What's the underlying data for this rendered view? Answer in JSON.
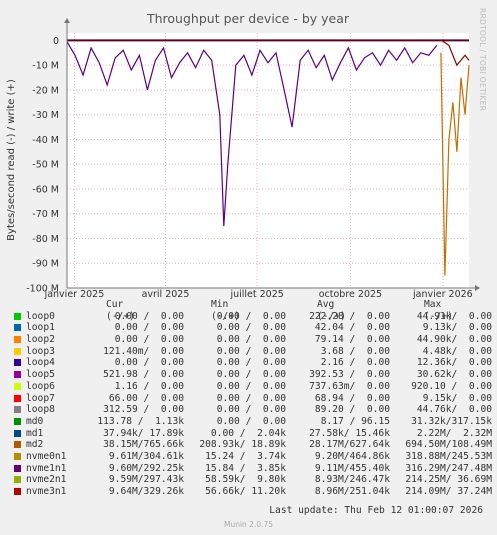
{
  "chart_data": {
    "type": "line",
    "title": "Throughput per device - by year",
    "ylabel": "Bytes/second read (-) / write (+)",
    "ylim": [
      -100000000,
      3000000
    ],
    "y_ticks": [
      {
        "value": 0,
        "label": "0"
      },
      {
        "value": -10000000,
        "label": "-10 M"
      },
      {
        "value": -20000000,
        "label": "-20 M"
      },
      {
        "value": -30000000,
        "label": "-30 M"
      },
      {
        "value": -40000000,
        "label": "-40 M"
      },
      {
        "value": -50000000,
        "label": "-50 M"
      },
      {
        "value": -60000000,
        "label": "-60 M"
      },
      {
        "value": -70000000,
        "label": "-70 M"
      },
      {
        "value": -80000000,
        "label": "-80 M"
      },
      {
        "value": -90000000,
        "label": "-90 M"
      },
      {
        "value": -100000000,
        "label": "-100 M"
      }
    ],
    "x_ticks": [
      "janvier 2025",
      "avril 2025",
      "juillet 2025",
      "octobre 2025",
      "janvier 2026"
    ],
    "grid": true,
    "series": [
      {
        "name": "nvme1n1",
        "color": "#5a0080",
        "x": [
          0.0,
          0.02,
          0.04,
          0.06,
          0.08,
          0.1,
          0.12,
          0.14,
          0.16,
          0.18,
          0.2,
          0.22,
          0.24,
          0.26,
          0.28,
          0.3,
          0.32,
          0.34,
          0.36,
          0.38,
          0.39,
          0.4,
          0.42,
          0.44,
          0.46,
          0.48,
          0.5,
          0.52,
          0.54,
          0.56,
          0.58,
          0.6,
          0.62,
          0.64,
          0.66,
          0.68,
          0.7,
          0.72,
          0.74,
          0.76,
          0.78,
          0.8,
          0.82,
          0.84,
          0.86,
          0.88,
          0.9,
          0.92
        ],
        "values": [
          -0.5,
          -6,
          -14,
          -3,
          -9,
          -18,
          -7,
          -4,
          -12,
          -6,
          -20,
          -8,
          -3,
          -15,
          -9,
          -5,
          -11,
          -4,
          -8,
          -30,
          -75,
          -50,
          -10,
          -6,
          -14,
          -4,
          -9,
          -5,
          -20,
          -35,
          -8,
          -4,
          -11,
          -6,
          -16,
          -9,
          -3,
          -12,
          -7,
          -5,
          -10,
          -4,
          -8,
          -3,
          -9,
          -5,
          -6,
          -2
        ]
      },
      {
        "name": "nvme2n1",
        "color": "#c07000",
        "x": [
          0.93,
          0.94,
          0.95,
          0.96,
          0.97,
          0.98,
          0.99,
          1.0
        ],
        "values": [
          -5,
          -95,
          -40,
          -25,
          -45,
          -15,
          -30,
          -10
        ]
      },
      {
        "name": "nvme3n1",
        "color": "#8b0000",
        "x": [
          0.93,
          0.95,
          0.97,
          0.99,
          1.0
        ],
        "values": [
          0.2,
          -2,
          -10,
          -6,
          -8
        ]
      }
    ]
  },
  "legend": {
    "headers": {
      "cur": "Cur (-/+)",
      "min": "Min (-/+)",
      "avg": "Avg (-/+)",
      "max": "Max (-/+)"
    },
    "rows": [
      {
        "name": "loop0",
        "color": "#00cc00",
        "cur": "0.00 /  0.00",
        "min": "0.00 /  0.00",
        "avg": "222.28 /  0.00",
        "max": "44.91k/  0.00"
      },
      {
        "name": "loop1",
        "color": "#0066b3",
        "cur": "0.00 /  0.00",
        "min": "0.00 /  0.00",
        "avg": "42.04 /  0.00",
        "max": "9.13k/  0.00"
      },
      {
        "name": "loop2",
        "color": "#ff8000",
        "cur": "0.00 /  0.00",
        "min": "0.00 /  0.00",
        "avg": "79.14 /  0.00",
        "max": "44.90k/  0.00"
      },
      {
        "name": "loop3",
        "color": "#ffcc00",
        "cur": "121.40m/  0.00",
        "min": "0.00 /  0.00",
        "avg": "3.68 /  0.00",
        "max": "4.48k/  0.00"
      },
      {
        "name": "loop4",
        "color": "#330099",
        "cur": "0.00 /  0.00",
        "min": "0.00 /  0.00",
        "avg": "2.16 /  0.00",
        "max": "12.36k/  0.00"
      },
      {
        "name": "loop5",
        "color": "#990099",
        "cur": "521.98 /  0.00",
        "min": "0.00 /  0.00",
        "avg": "392.53 /  0.00",
        "max": "30.62k/  0.00"
      },
      {
        "name": "loop6",
        "color": "#ccff00",
        "cur": "1.16 /  0.00",
        "min": "0.00 /  0.00",
        "avg": "737.63m/  0.00",
        "max": "920.10 /  0.00"
      },
      {
        "name": "loop7",
        "color": "#ff0000",
        "cur": "66.00 /  0.00",
        "min": "0.00 /  0.00",
        "avg": "68.94 /  0.00",
        "max": "9.15k/  0.00"
      },
      {
        "name": "loop8",
        "color": "#808080",
        "cur": "312.59 /  0.00",
        "min": "0.00 /  0.00",
        "avg": "89.20 /  0.00",
        "max": "44.76k/  0.00"
      },
      {
        "name": "md0",
        "color": "#008f00",
        "cur": "113.78 /  1.13k",
        "min": "0.00 /  0.00",
        "avg": "8.17 / 96.15",
        "max": "31.32k/317.15k"
      },
      {
        "name": "md1",
        "color": "#00487d",
        "cur": "37.94k/ 17.89k",
        "min": "0.00 /  2.04k",
        "avg": "27.58k/ 15.46k",
        "max": "2.22M/  2.32M"
      },
      {
        "name": "md2",
        "color": "#b35a00",
        "cur": "38.15M/765.66k",
        "min": "208.93k/ 18.89k",
        "avg": "28.17M/627.64k",
        "max": "694.50M/108.49M"
      },
      {
        "name": "nvme0n1",
        "color": "#b38f00",
        "cur": "9.61M/304.61k",
        "min": "15.24 /  3.74k",
        "avg": "9.20M/464.86k",
        "max": "318.88M/245.53M"
      },
      {
        "name": "nvme1n1",
        "color": "#6b006b",
        "cur": "9.60M/292.25k",
        "min": "15.84 /  3.85k",
        "avg": "9.11M/455.40k",
        "max": "316.29M/247.48M"
      },
      {
        "name": "nvme2n1",
        "color": "#8fb300",
        "cur": "9.59M/297.43k",
        "min": "58.59k/  9.80k",
        "avg": "8.93M/246.47k",
        "max": "214.25M/ 36.69M"
      },
      {
        "name": "nvme3n1",
        "color": "#b30000",
        "cur": "9.64M/329.26k",
        "min": "56.66k/ 11.20k",
        "avg": "8.96M/251.04k",
        "max": "214.09M/ 37.24M"
      }
    ]
  },
  "last_update": "Last update: Thu Feb 12 01:00:07 2026",
  "footer": "Munin 2.0.75",
  "side_label": "RRDTOOL / TOBI OETIKER"
}
